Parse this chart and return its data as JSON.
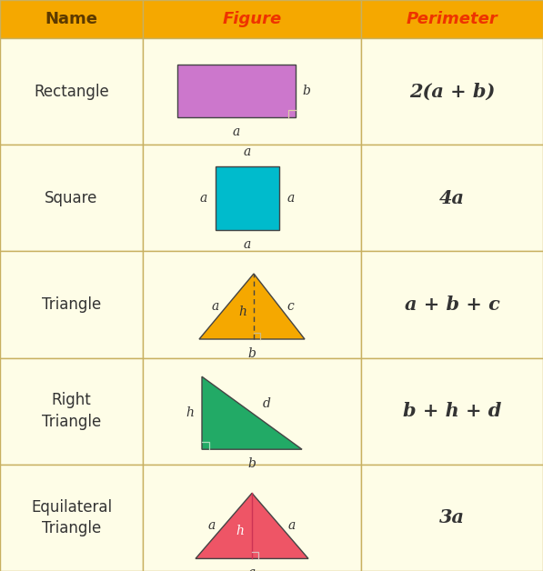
{
  "headers": [
    "Name",
    "Figure",
    "Perimeter"
  ],
  "header_bg": "#F5A800",
  "header_text_color": "#5C3A00",
  "row_bg": "#FEFDE7",
  "border_color": "#C8B060",
  "name_text_color": "#333333",
  "rows": [
    {
      "name": "Rectangle",
      "formula": "2(a + b)"
    },
    {
      "name": "Square",
      "formula": "4a"
    },
    {
      "name": "Triangle",
      "formula": "a + b + c"
    },
    {
      "name": "Right\nTriangle",
      "formula": "b + h + d"
    },
    {
      "name": "Equilateral\nTriangle",
      "formula": "3a"
    }
  ],
  "rect_color": "#CC77CC",
  "square_color": "#00BBCC",
  "triangle_color": "#F5A800",
  "right_triangle_color": "#22AA66",
  "equil_triangle_color": "#EE5566",
  "label_color": "#333333"
}
